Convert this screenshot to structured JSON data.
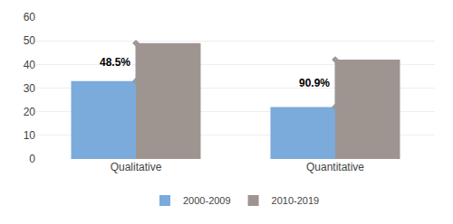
{
  "chart_data": {
    "type": "bar",
    "categories": [
      "Qualitative",
      "Quantitative"
    ],
    "series": [
      {
        "name": "2000-2009",
        "color": "#7aabdb",
        "values": [
          33,
          22
        ]
      },
      {
        "name": "2010-2019",
        "color": "#9e9490",
        "values": [
          49,
          42
        ]
      }
    ],
    "annotations": [
      "48.5%",
      "90.9%"
    ],
    "ylim": [
      0,
      60
    ],
    "yticks": [
      0,
      10,
      20,
      30,
      40,
      50,
      60
    ],
    "grid": true,
    "legend": "bottom"
  }
}
